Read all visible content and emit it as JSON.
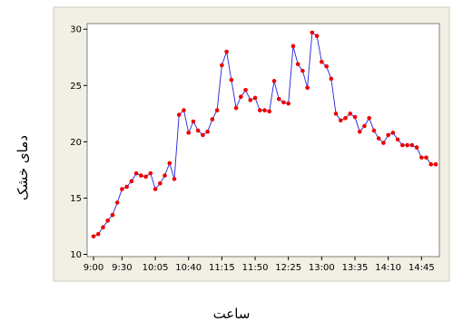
{
  "chart_data": {
    "type": "line",
    "xlabel": "ساعت",
    "ylabel": "دمای خشک",
    "x_tick_labels": [
      "9:00",
      "9:30",
      "10:05",
      "10:40",
      "11:15",
      "11:50",
      "12:25",
      "13:00",
      "13:35",
      "14:10",
      "14:45"
    ],
    "x_tick_index": [
      0,
      6,
      13,
      20,
      27,
      34,
      41,
      48,
      55,
      62,
      69
    ],
    "ylim": [
      9.8,
      30.5
    ],
    "y_ticks": [
      10,
      15,
      20,
      25,
      30
    ],
    "grid": false,
    "legend": "none",
    "colors": {
      "line": "#2222dd",
      "marker": "#ee0000",
      "plot_bg": "#ffffff",
      "figure_bg": "#f2f0e4",
      "frame": "#7f7f7f"
    },
    "series": [
      {
        "values": [
          11.6,
          11.8,
          12.4,
          13.0,
          13.5,
          14.6,
          15.8,
          16.0,
          16.5,
          17.2,
          17.0,
          16.9,
          17.2,
          15.8,
          16.3,
          17.0,
          18.1,
          16.7,
          22.4,
          22.8,
          20.8,
          21.8,
          21.0,
          20.6,
          20.9,
          22.0,
          22.8,
          26.8,
          28.0,
          25.5,
          23.0,
          24.0,
          24.6,
          23.7,
          23.9,
          22.8,
          22.8,
          22.7,
          25.4,
          23.8,
          23.5,
          23.4,
          28.5,
          26.9,
          26.3,
          24.8,
          29.7,
          29.4,
          27.1,
          26.7,
          25.6,
          22.5,
          21.9,
          22.1,
          22.5,
          22.2,
          20.9,
          21.4,
          22.1,
          21.0,
          20.3,
          19.9,
          20.6,
          20.8,
          20.2,
          19.7,
          19.7,
          19.7,
          19.5,
          18.6,
          18.6,
          18.0,
          18.0
        ]
      }
    ]
  }
}
